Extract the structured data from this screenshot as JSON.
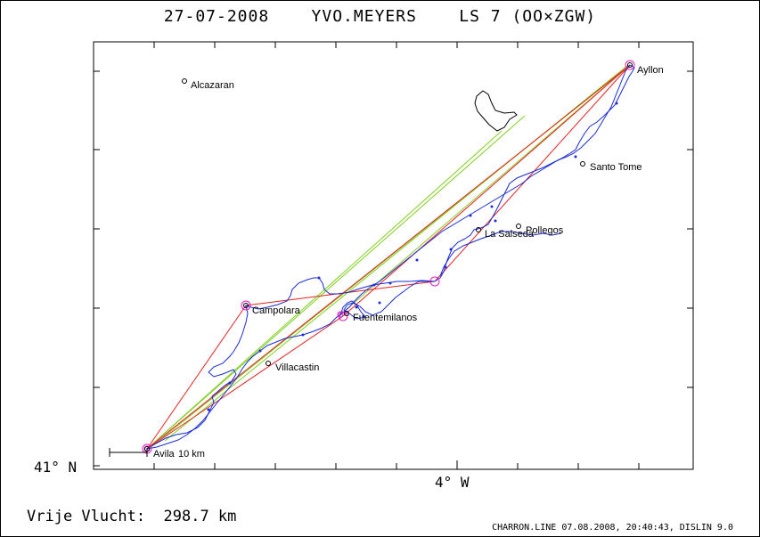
{
  "title": "27-07-2008    YVO.MEYERS    LS 7 (OO×ZGW)",
  "axis": {
    "lat_label": "41° N",
    "lon_label": "4° W"
  },
  "flight": {
    "free_flight": "Vrije Vlucht:  298.7 km"
  },
  "footer": "CHARRON.LINE 07.08.2008, 20:40:43, DISLIN 9.0",
  "scale_bar": {
    "label": "10 km"
  },
  "places": [
    {
      "name": "Alcazaran",
      "turnpoint": false
    },
    {
      "name": "Ayllon",
      "turnpoint": true
    },
    {
      "name": "Santo Tome",
      "turnpoint": false
    },
    {
      "name": "Pollegos",
      "turnpoint": false
    },
    {
      "name": "La Salseda",
      "turnpoint": false
    },
    {
      "name": "Campolara",
      "turnpoint": true
    },
    {
      "name": "Fuentemilanos",
      "turnpoint": true
    },
    {
      "name": "Villacastin",
      "turnpoint": false
    },
    {
      "name": "Avila",
      "turnpoint": true
    }
  ],
  "colors": {
    "track": "#1a2bd8",
    "task": "#e82020",
    "optimized": "#80d020",
    "turnpoint_circle": "#e020c0",
    "frame": "#000000"
  }
}
